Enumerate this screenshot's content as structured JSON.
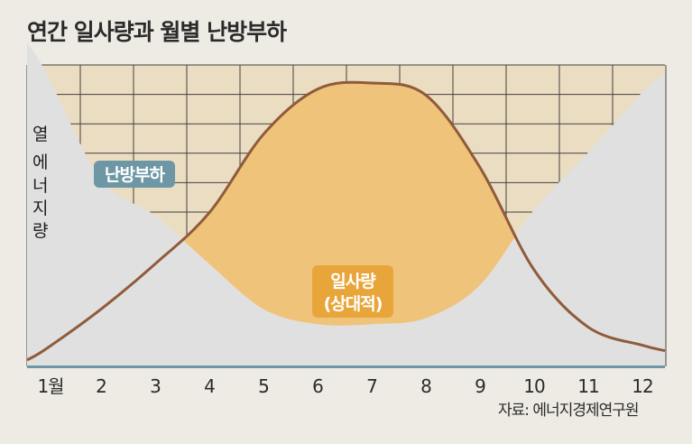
{
  "chart_data": {
    "type": "area",
    "title": "연간 일사량과 월별 난방부하",
    "ylabel": "열 에너지량",
    "categories": [
      "1월",
      "2",
      "3",
      "4",
      "5",
      "6",
      "7",
      "8",
      "9",
      "10",
      "11",
      "12"
    ],
    "series": [
      {
        "name": "난방부하",
        "values": [
          0.97,
          0.62,
          0.5,
          0.34,
          0.19,
          0.14,
          0.14,
          0.16,
          0.27,
          0.52,
          0.71,
          0.91
        ],
        "color": "#e0e0e0"
      },
      {
        "name": "일사량 (상대적)",
        "values": [
          0.06,
          0.19,
          0.34,
          0.51,
          0.77,
          0.92,
          0.94,
          0.9,
          0.66,
          0.32,
          0.13,
          0.07
        ],
        "color": "#f0c37a"
      }
    ],
    "grid": true,
    "ylim": [
      0,
      1
    ],
    "series_labels": {
      "heating": "난방부하",
      "solar_line1": "일사량",
      "solar_line2": "(상대적)"
    },
    "source": "자료: 에너지경제연구원",
    "colors": {
      "background": "#eeebe4",
      "plot_background": "#ebddc1",
      "grid": "#404040",
      "heating_fill": "#e0e0e0",
      "solar_fill": "#f0c37a",
      "solar_line": "#8f5b3b",
      "heating_badge": "#6e97a5",
      "solar_badge": "#e8a63a",
      "baseline": "#6e97a5"
    }
  }
}
